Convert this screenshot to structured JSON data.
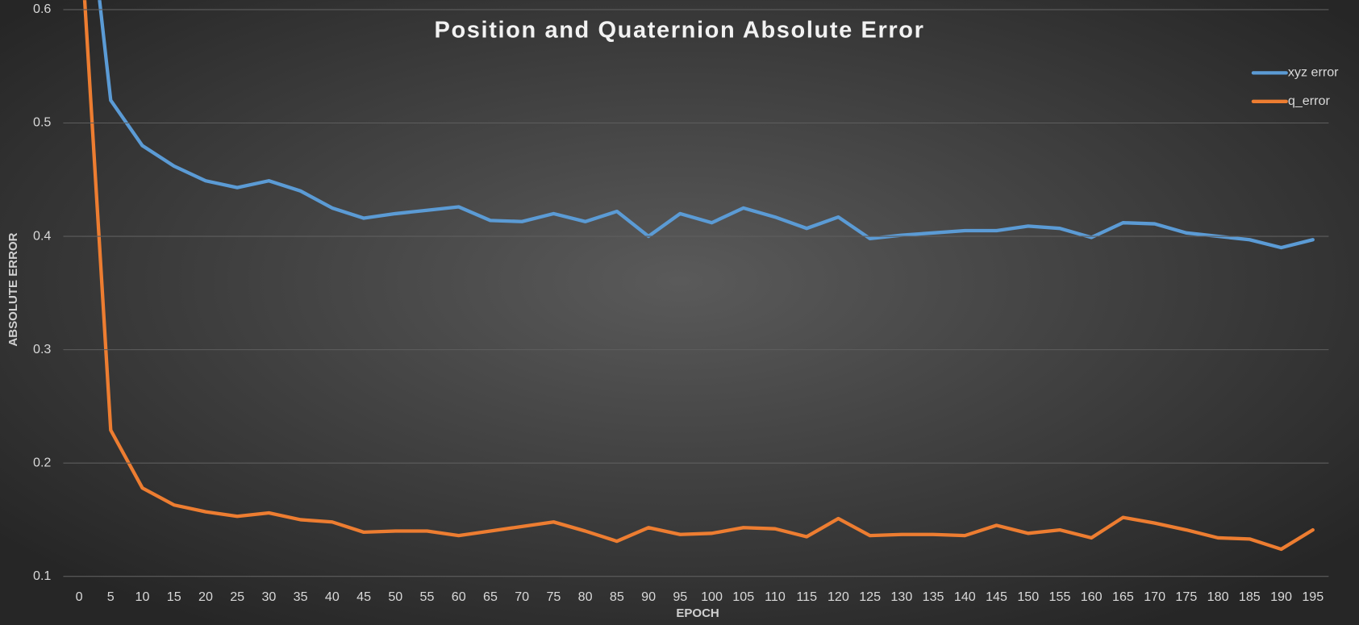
{
  "chart_data": {
    "type": "line",
    "title": "Position and Quaternion Absolute Error",
    "x_label": "EPOCH",
    "y_label": "ABSOLUTE ERROR",
    "categories": [
      0,
      5,
      10,
      15,
      20,
      25,
      30,
      35,
      40,
      45,
      50,
      55,
      60,
      65,
      70,
      75,
      80,
      85,
      90,
      95,
      100,
      105,
      110,
      115,
      120,
      125,
      130,
      135,
      140,
      145,
      150,
      155,
      160,
      165,
      170,
      175,
      180,
      185,
      190,
      195
    ],
    "series": [
      {
        "name": "xyz error",
        "color": "#5b9bd5",
        "values": [
          0.77,
          0.52,
          0.48,
          0.462,
          0.449,
          0.443,
          0.449,
          0.44,
          0.425,
          0.416,
          0.42,
          0.423,
          0.426,
          0.414,
          0.413,
          0.42,
          0.413,
          0.422,
          0.4,
          0.42,
          0.412,
          0.425,
          0.417,
          0.407,
          0.417,
          0.398,
          0.401,
          0.403,
          0.405,
          0.405,
          0.409,
          0.407,
          0.399,
          0.412,
          0.411,
          0.403,
          0.4,
          0.397,
          0.39,
          0.397
        ]
      },
      {
        "name": "q_error",
        "color": "#ed7d31",
        "values": [
          0.69,
          0.229,
          0.178,
          0.163,
          0.157,
          0.153,
          0.156,
          0.15,
          0.148,
          0.139,
          0.14,
          0.14,
          0.136,
          0.14,
          0.144,
          0.148,
          0.14,
          0.131,
          0.143,
          0.137,
          0.138,
          0.143,
          0.142,
          0.135,
          0.151,
          0.136,
          0.137,
          0.137,
          0.136,
          0.145,
          0.138,
          0.141,
          0.134,
          0.152,
          0.147,
          0.141,
          0.134,
          0.133,
          0.124,
          0.141
        ]
      }
    ],
    "ylim": [
      0.1,
      0.6
    ],
    "yticks": [
      0.1,
      0.2,
      0.3,
      0.4,
      0.5,
      0.6
    ],
    "grid": true,
    "legend": "top-right"
  }
}
